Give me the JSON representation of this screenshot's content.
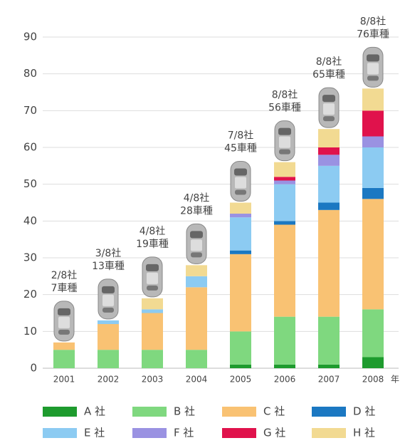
{
  "chart_data": {
    "type": "stacked_bar",
    "categories": [
      "2001",
      "2002",
      "2003",
      "2004",
      "2005",
      "2006",
      "2007",
      "2008"
    ],
    "x_unit": "年",
    "series": [
      {
        "name": "A 社",
        "color": "#1e9b2e",
        "values": [
          0,
          0,
          0,
          0,
          1,
          1,
          1,
          3
        ]
      },
      {
        "name": "B 社",
        "color": "#7fd87f",
        "values": [
          5,
          5,
          5,
          5,
          9,
          13,
          13,
          13
        ]
      },
      {
        "name": "C 社",
        "color": "#f9c273",
        "values": [
          2,
          7,
          10,
          17,
          21,
          25,
          29,
          30
        ]
      },
      {
        "name": "D 社",
        "color": "#1b78c2",
        "values": [
          0,
          0,
          0,
          0,
          1,
          1,
          2,
          3
        ]
      },
      {
        "name": "E 社",
        "color": "#8ccbf2",
        "values": [
          0,
          1,
          1,
          3,
          9,
          10,
          10,
          11
        ]
      },
      {
        "name": "F 社",
        "color": "#9a92e2",
        "values": [
          0,
          0,
          0,
          0,
          1,
          1,
          3,
          3
        ]
      },
      {
        "name": "G 社",
        "color": "#e0124c",
        "values": [
          0,
          0,
          0,
          0,
          0,
          1,
          2,
          7
        ]
      },
      {
        "name": "H 社",
        "color": "#f2da92",
        "values": [
          0,
          0,
          3,
          3,
          3,
          4,
          5,
          6
        ]
      }
    ],
    "bar_labels": [
      [
        "2/8社",
        "7車種"
      ],
      [
        "3/8社",
        "13車種"
      ],
      [
        "4/8社",
        "19車種"
      ],
      [
        "4/8社",
        "28車種"
      ],
      [
        "7/8社",
        "45車種"
      ],
      [
        "8/8社",
        "56車種"
      ],
      [
        "8/8社",
        "65車種"
      ],
      [
        "8/8社",
        "76車種"
      ]
    ],
    "ylim": [
      0,
      90
    ],
    "yticks": [
      0,
      10,
      20,
      30,
      40,
      50,
      60,
      70,
      80,
      90
    ],
    "grid": true
  }
}
